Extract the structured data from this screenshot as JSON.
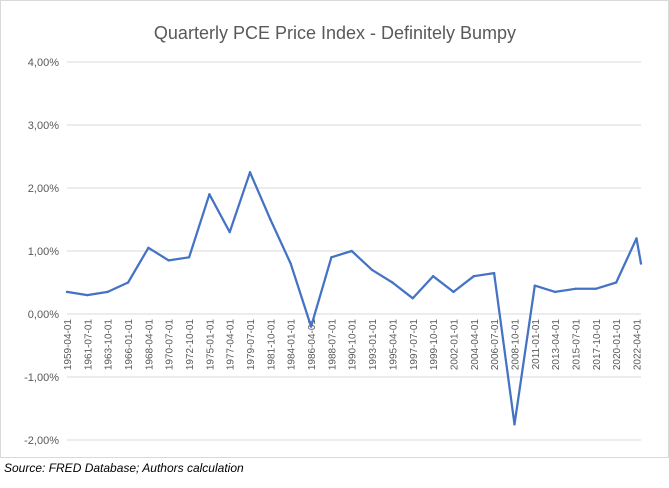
{
  "chart_data": {
    "type": "line",
    "title": "Quarterly PCE Price Index - Definitely Bumpy",
    "xlabel": "",
    "ylabel": "",
    "ylim": [
      -2.0,
      4.0
    ],
    "y_ticks": [
      "4,00%",
      "3,00%",
      "2,00%",
      "1,00%",
      "0,00%",
      "-1,00%",
      "-2,00%"
    ],
    "y_tick_values": [
      4,
      3,
      2,
      1,
      0,
      -1,
      -2
    ],
    "x_tick_labels": [
      "1959-04-01",
      "1961-07-01",
      "1963-10-01",
      "1966-01-01",
      "1968-04-01",
      "1970-07-01",
      "1972-10-01",
      "1975-01-01",
      "1977-04-01",
      "1979-07-01",
      "1981-10-01",
      "1984-01-01",
      "1986-04-01",
      "1988-07-01",
      "1990-10-01",
      "1993-01-01",
      "1995-04-01",
      "1997-07-01",
      "1999-10-01",
      "2002-01-01",
      "2004-04-01",
      "2006-07-01",
      "2008-10-01",
      "2011-01-01",
      "2013-04-01",
      "2015-07-01",
      "2017-10-01",
      "2020-01-01",
      "2022-04-01"
    ],
    "grid": true,
    "legend": "none",
    "series": [
      {
        "color": "#4472c4",
        "x": [
          "1959-04-01",
          "1961-07-01",
          "1963-10-01",
          "1966-01-01",
          "1968-04-01",
          "1970-07-01",
          "1972-10-01",
          "1975-01-01",
          "1977-04-01",
          "1979-07-01",
          "1981-10-01",
          "1984-01-01",
          "1986-04-01",
          "1988-07-01",
          "1990-10-01",
          "1993-01-01",
          "1995-04-01",
          "1997-07-01",
          "1999-10-01",
          "2002-01-01",
          "2004-04-01",
          "2006-07-01",
          "2008-10-01",
          "2011-01-01",
          "2013-04-01",
          "2015-07-01",
          "2017-10-01",
          "2020-01-01",
          "2022-04-01",
          "2022-10-01"
        ],
        "values": [
          0.35,
          0.3,
          0.35,
          0.5,
          1.05,
          0.85,
          0.9,
          1.9,
          1.3,
          2.25,
          1.5,
          0.8,
          -0.2,
          0.9,
          1.0,
          0.7,
          0.5,
          0.25,
          0.6,
          0.35,
          0.6,
          0.65,
          -1.75,
          0.45,
          0.35,
          0.4,
          0.4,
          0.5,
          1.2,
          0.8
        ]
      }
    ]
  },
  "source": "Source: FRED Database; Authors calculation"
}
